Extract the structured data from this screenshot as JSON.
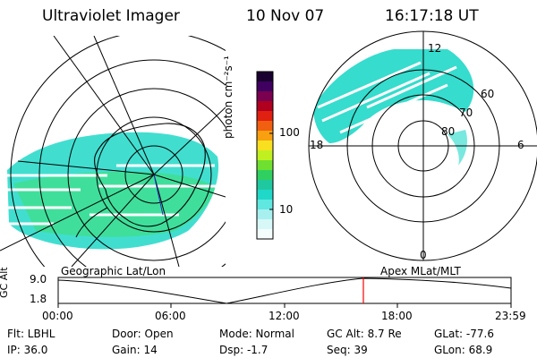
{
  "header": {
    "instrument": "Ultraviolet Imager",
    "date": "10 Nov 07",
    "time": "16:17:18 UT"
  },
  "left_map": {
    "label": "Geographic Lat/Lon"
  },
  "right_map": {
    "label": "Apex MLat/MLT",
    "mlt_labels": {
      "top": "12",
      "bottom": "0",
      "left": "18",
      "right": "6"
    },
    "lat_labels": [
      "60",
      "70",
      "80"
    ]
  },
  "colorbar": {
    "unit_label": "photon cm⁻²s⁻¹",
    "ticks": [
      "100",
      "10"
    ]
  },
  "altitude_plot": {
    "ylabel": "GC Alt",
    "y_top": "9.0",
    "y_bottom": "1.8",
    "time_ticks": [
      "00:00",
      "06:00",
      "12:00",
      "18:00",
      "23:59"
    ],
    "marker_color": "#ff0000"
  },
  "status": {
    "flt": "Flt: LBHL",
    "ip": "IP: 36.0",
    "door": "Door: Open",
    "gain": "Gain: 14",
    "mode": "Mode: Normal",
    "dsp": "Dsp:    -1.7",
    "gc_alt": "GC Alt: 8.7 Re",
    "seq": "Seq: 39",
    "glat": "GLat: -77.6",
    "glon": "GLon:  68.9"
  }
}
